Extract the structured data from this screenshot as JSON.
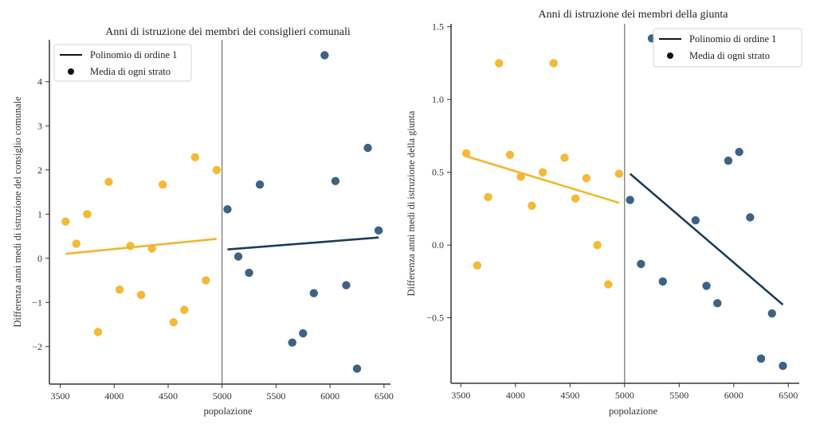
{
  "chart_data": [
    {
      "type": "scatter",
      "title": "Anni di istruzione dei membri dei consiglieri comunali",
      "xlabel": "popolazione",
      "ylabel": "Differenza anni medi di istruzione del consiglio comunale",
      "xlim": [
        3400,
        6560
      ],
      "ylim": [
        -2.85,
        4.95
      ],
      "xticks": [
        3500,
        4000,
        4500,
        5000,
        5500,
        6000,
        6500
      ],
      "yticks": [
        -2,
        -1,
        0,
        1,
        2,
        3,
        4
      ],
      "cutoff": 5000,
      "legend": {
        "position": "top-left",
        "entries": [
          "Polinomio di ordine 1",
          "Media di ogni strato"
        ]
      },
      "series": [
        {
          "name": "below-threshold",
          "color": "#f2b52c",
          "x": [
            3550,
            3650,
            3750,
            3850,
            3950,
            4050,
            4150,
            4250,
            4350,
            4450,
            4550,
            4650,
            4750,
            4850,
            4950
          ],
          "y": [
            0.83,
            0.33,
            1.0,
            -1.67,
            1.73,
            -0.71,
            0.28,
            -0.83,
            0.22,
            1.67,
            -1.45,
            -1.17,
            2.29,
            -0.5,
            2.0
          ],
          "fit": {
            "x": [
              3550,
              4950
            ],
            "y": [
              0.1,
              0.44
            ]
          }
        },
        {
          "name": "above-threshold",
          "color": "#355a7c",
          "line_color": "#1c3d5a",
          "x": [
            5050,
            5150,
            5250,
            5350,
            5650,
            5750,
            5850,
            5950,
            6050,
            6150,
            6250,
            6350,
            6450
          ],
          "y": [
            1.11,
            0.04,
            -0.33,
            1.67,
            -1.91,
            -1.7,
            -0.79,
            4.6,
            1.75,
            -0.61,
            -2.5,
            2.5,
            0.63
          ],
          "fit": {
            "x": [
              5050,
              6450
            ],
            "y": [
              0.2,
              0.47
            ]
          }
        }
      ]
    },
    {
      "type": "scatter",
      "title": "Anni di istruzione dei membri della giunta",
      "xlabel": "popolazione",
      "ylabel": "Differenza anni medi di istruzione della giunta",
      "xlim": [
        3410,
        6600
      ],
      "ylim": [
        -0.95,
        1.52
      ],
      "xticks": [
        3500,
        4000,
        4500,
        5000,
        5500,
        6000,
        6500
      ],
      "yticks": [
        -0.5,
        0.0,
        0.5,
        1.0,
        1.5
      ],
      "ytick_labels": [
        "−0.5",
        "0.0",
        "0.5",
        "1.0",
        "1.5"
      ],
      "cutoff": 5000,
      "legend": {
        "position": "top-right",
        "entries": [
          "Polinomio di ordine 1",
          "Media di ogni strato"
        ]
      },
      "series": [
        {
          "name": "below-threshold",
          "color": "#f2b52c",
          "x": [
            3550,
            3650,
            3750,
            3850,
            3950,
            4050,
            4150,
            4250,
            4350,
            4450,
            4550,
            4650,
            4750,
            4850,
            4950
          ],
          "y": [
            0.63,
            -0.14,
            0.33,
            1.25,
            0.62,
            0.47,
            0.27,
            0.5,
            1.25,
            0.6,
            0.32,
            0.46,
            0.0,
            -0.27,
            0.49
          ],
          "fit": {
            "x": [
              3550,
              4950
            ],
            "y": [
              0.61,
              0.29
            ]
          }
        },
        {
          "name": "above-threshold",
          "color": "#355a7c",
          "line_color": "#1c3d5a",
          "x": [
            5050,
            5150,
            5250,
            5350,
            5650,
            5750,
            5850,
            5950,
            6050,
            6150,
            6250,
            6350,
            6450
          ],
          "y": [
            0.31,
            -0.13,
            1.42,
            -0.25,
            0.17,
            -0.28,
            -0.4,
            0.58,
            0.64,
            0.19,
            -0.78,
            -0.47,
            -0.83
          ],
          "fit": {
            "x": [
              5050,
              6450
            ],
            "y": [
              0.49,
              -0.41
            ]
          }
        }
      ]
    }
  ],
  "left_tick_labels": {
    "y": [
      "−2",
      "−1",
      "0",
      "1",
      "2",
      "3",
      "4"
    ]
  }
}
